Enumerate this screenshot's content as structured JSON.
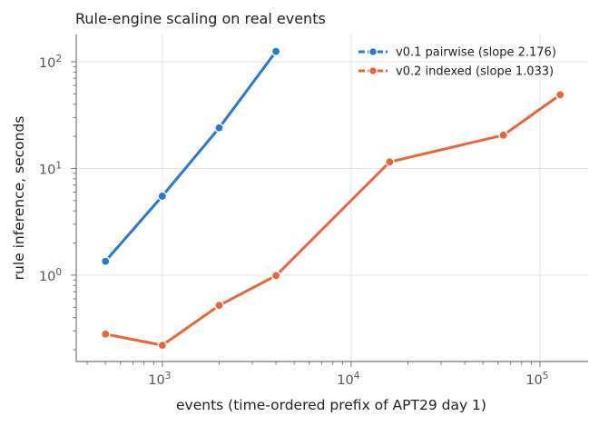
{
  "chart_data": {
    "type": "line",
    "title": "Rule-engine scaling on real events",
    "xlabel": "events (time-ordered prefix of APT29 day 1)",
    "ylabel": "rule inference, seconds",
    "xscale": "log",
    "yscale": "log",
    "xlim": [
      350,
      180000
    ],
    "ylim": [
      0.155,
      180
    ],
    "x_ticks": [
      {
        "value": 1000,
        "base": "10",
        "exp": "3"
      },
      {
        "value": 10000,
        "base": "10",
        "exp": "4"
      },
      {
        "value": 100000,
        "base": "10",
        "exp": "5"
      }
    ],
    "y_ticks": [
      {
        "value": 1,
        "base": "10",
        "exp": "0"
      },
      {
        "value": 10,
        "base": "10",
        "exp": "1"
      },
      {
        "value": 100,
        "base": "10",
        "exp": "2"
      }
    ],
    "grid": true,
    "legend_position": "top-right",
    "series": [
      {
        "name": "v0.1 pairwise (slope 2.176)",
        "color": "#2b78d0",
        "marker": "circle",
        "x": [
          500,
          1000,
          2000,
          4000
        ],
        "y": [
          1.35,
          5.5,
          24,
          125
        ]
      },
      {
        "name": "v0.2 indexed (slope 1.033)",
        "color": "#e8673a",
        "marker": "circle",
        "x": [
          500,
          1000,
          2000,
          4000,
          16000,
          64000,
          128000
        ],
        "y": [
          0.28,
          0.22,
          0.52,
          0.99,
          11.5,
          20.5,
          49
        ]
      }
    ]
  }
}
